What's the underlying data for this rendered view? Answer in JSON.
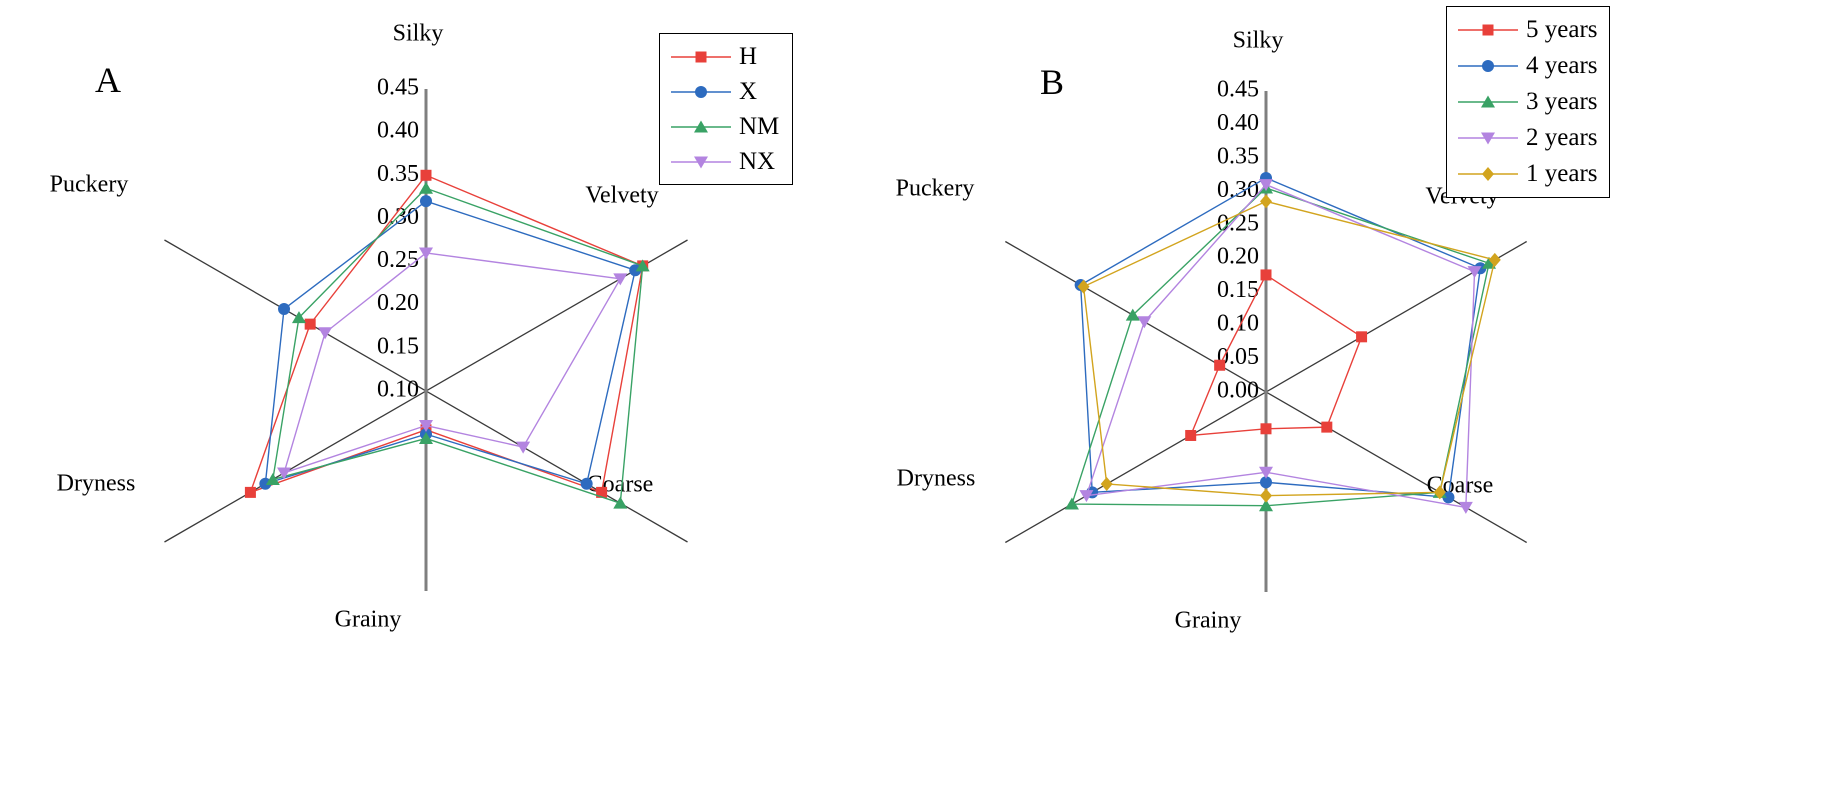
{
  "figure": {
    "background": "#ffffff",
    "axis_line_color": "#3a3a3a",
    "radial_axis_color": "#7f7f7f",
    "text_color": "#000000"
  },
  "chart_data": [
    {
      "type": "radar",
      "panel_label": "A",
      "categories": [
        "Silky",
        "Velvety",
        "Coarse",
        "Grainy",
        "Dryness",
        "Puckery"
      ],
      "r_min": 0.1,
      "r_max": 0.45,
      "tick_step": 0.05,
      "tick_labels": [
        "0.45",
        "0.40",
        "0.35",
        "0.30",
        "0.25",
        "0.20",
        "0.15",
        "0.10"
      ],
      "grid": false,
      "legend_position": "top-right",
      "series": [
        {
          "name": "H",
          "color": "#e8403a",
          "marker": "square",
          "values": [
            0.35,
            0.39,
            0.335,
            0.145,
            0.335,
            0.255
          ]
        },
        {
          "name": "X",
          "color": "#2d6bbf",
          "marker": "circle",
          "values": [
            0.32,
            0.38,
            0.315,
            0.15,
            0.315,
            0.29
          ]
        },
        {
          "name": "NM",
          "color": "#39a265",
          "marker": "triangle-up",
          "values": [
            0.335,
            0.39,
            0.36,
            0.155,
            0.305,
            0.27
          ]
        },
        {
          "name": "NX",
          "color": "#b384e0",
          "marker": "triangle-down",
          "values": [
            0.26,
            0.36,
            0.23,
            0.14,
            0.29,
            0.235
          ]
        }
      ]
    },
    {
      "type": "radar",
      "panel_label": "B",
      "categories": [
        "Silky",
        "Velvety",
        "Coarse",
        "Grainy",
        "Dryness",
        "Puckery"
      ],
      "r_min": 0.0,
      "r_max": 0.45,
      "tick_step": 0.05,
      "tick_labels": [
        "0.45",
        "0.40",
        "0.35",
        "0.30",
        "0.25",
        "0.20",
        "0.15",
        "0.10",
        "0.05",
        "0.00"
      ],
      "grid": false,
      "legend_position": "top-right",
      "series": [
        {
          "name": "5 years",
          "color": "#e8403a",
          "marker": "square",
          "values": [
            0.175,
            0.165,
            0.105,
            0.055,
            0.13,
            0.08
          ]
        },
        {
          "name": "4 years",
          "color": "#2d6bbf",
          "marker": "circle",
          "values": [
            0.32,
            0.37,
            0.315,
            0.135,
            0.3,
            0.32
          ]
        },
        {
          "name": "3 years",
          "color": "#39a265",
          "marker": "triangle-up",
          "values": [
            0.305,
            0.385,
            0.3,
            0.17,
            0.335,
            0.23
          ]
        },
        {
          "name": "2 years",
          "color": "#b384e0",
          "marker": "triangle-down",
          "values": [
            0.31,
            0.36,
            0.345,
            0.12,
            0.31,
            0.21
          ]
        },
        {
          "name": "1 years",
          "color": "#d2a41e",
          "marker": "diamond",
          "values": [
            0.285,
            0.395,
            0.3,
            0.155,
            0.275,
            0.315
          ]
        }
      ]
    }
  ]
}
